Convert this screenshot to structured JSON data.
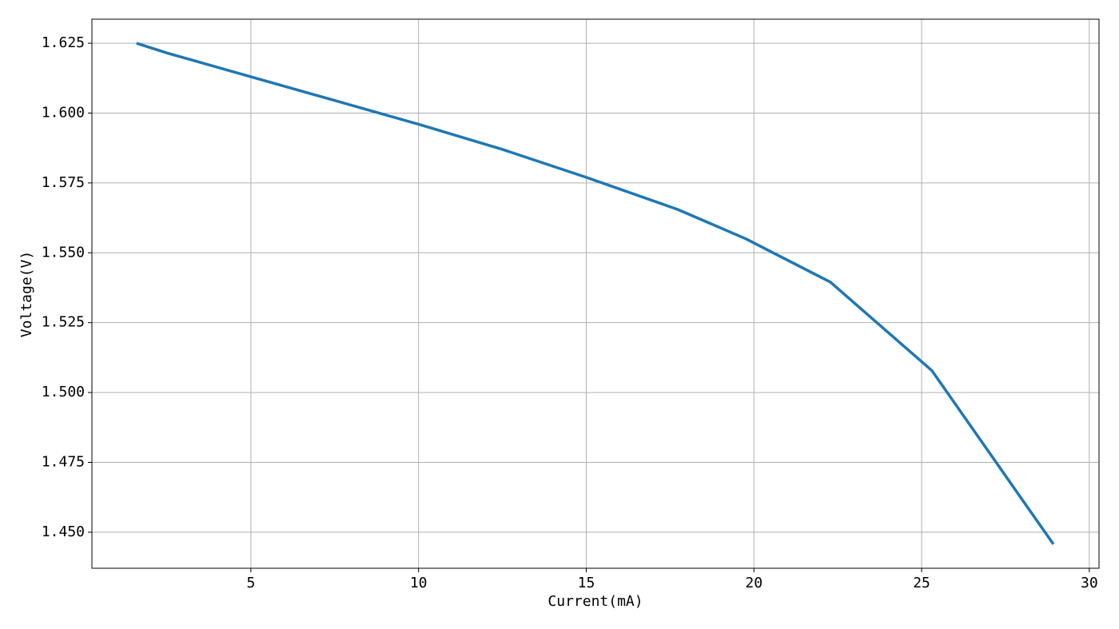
{
  "chart_data": {
    "type": "line",
    "x_label": "Current(mA)",
    "y_label": "Voltage(V)",
    "x": [
      1.59,
      2.5,
      5,
      7.5,
      10,
      12.5,
      15,
      17.73,
      19.76,
      22.28,
      25.31,
      28.93
    ],
    "series": [
      {
        "name": "Voltage",
        "color": "#1f77b4",
        "values": [
          1.625,
          1.6215,
          1.613,
          1.6045,
          1.596,
          1.587,
          1.577,
          1.5655,
          1.555,
          1.5395,
          1.5078,
          1.4457
        ]
      }
    ],
    "xlim": [
      0.26,
      30.29
    ],
    "ylim": [
      1.4371,
      1.6336
    ],
    "xticks": [
      5,
      10,
      15,
      20,
      25,
      30
    ],
    "yticks": [
      {
        "value": 1.45,
        "label": "1.450"
      },
      1.475,
      {
        "value": 1.5,
        "label": "1.500"
      },
      1.525,
      {
        "value": 1.55,
        "label": "1.550"
      },
      1.575,
      {
        "value": 1.6,
        "label": "1.600"
      },
      1.625
    ],
    "grid": true
  }
}
